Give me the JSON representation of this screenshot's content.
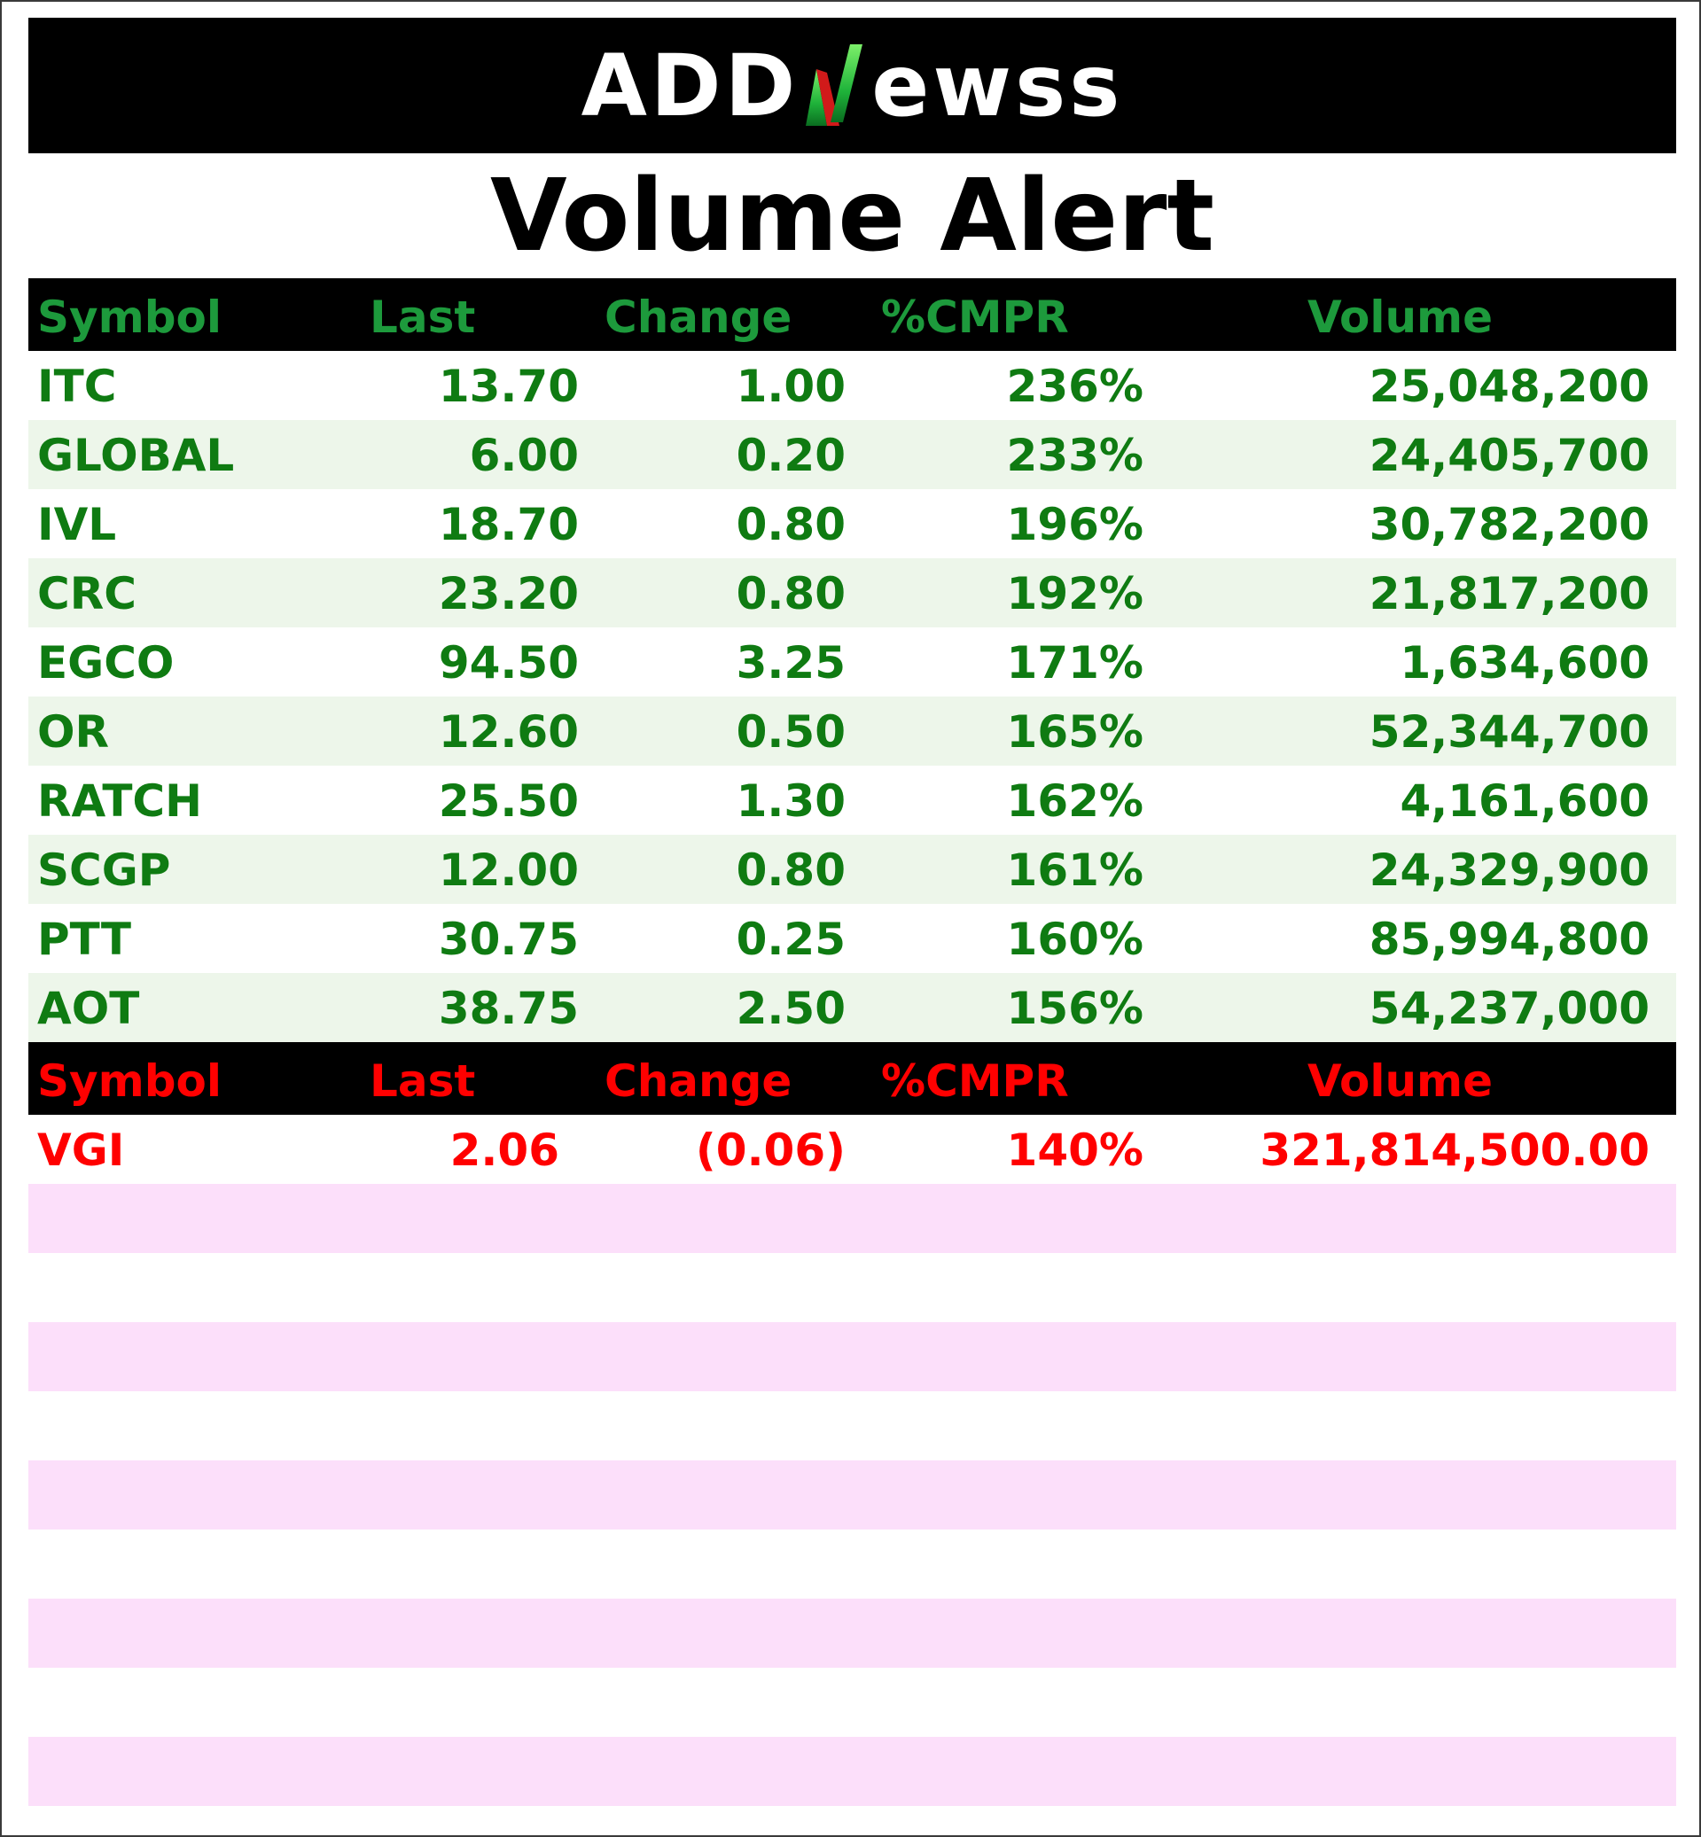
{
  "brand": {
    "logo_text_left": "ADD",
    "logo_text_right": "ewss",
    "logo_alt": "ADDNewss"
  },
  "title": "Volume Alert",
  "gainers": {
    "headers": {
      "symbol": "Symbol",
      "last": "Last",
      "change": "Change",
      "cmpr": "%CMPR",
      "volume": "Volume"
    },
    "rows": [
      {
        "symbol": "ITC",
        "last": "13.70",
        "change": "1.00",
        "cmpr": "236%",
        "volume": "25,048,200"
      },
      {
        "symbol": "GLOBAL",
        "last": "6.00",
        "change": "0.20",
        "cmpr": "233%",
        "volume": "24,405,700"
      },
      {
        "symbol": "IVL",
        "last": "18.70",
        "change": "0.80",
        "cmpr": "196%",
        "volume": "30,782,200"
      },
      {
        "symbol": "CRC",
        "last": "23.20",
        "change": "0.80",
        "cmpr": "192%",
        "volume": "21,817,200"
      },
      {
        "symbol": "EGCO",
        "last": "94.50",
        "change": "3.25",
        "cmpr": "171%",
        "volume": "1,634,600"
      },
      {
        "symbol": "OR",
        "last": "12.60",
        "change": "0.50",
        "cmpr": "165%",
        "volume": "52,344,700"
      },
      {
        "symbol": "RATCH",
        "last": "25.50",
        "change": "1.30",
        "cmpr": "162%",
        "volume": "4,161,600"
      },
      {
        "symbol": "SCGP",
        "last": "12.00",
        "change": "0.80",
        "cmpr": "161%",
        "volume": "24,329,900"
      },
      {
        "symbol": "PTT",
        "last": "30.75",
        "change": "0.25",
        "cmpr": "160%",
        "volume": "85,994,800"
      },
      {
        "symbol": "AOT",
        "last": "38.75",
        "change": "2.50",
        "cmpr": "156%",
        "volume": "54,237,000"
      }
    ]
  },
  "losers": {
    "headers": {
      "symbol": "Symbol",
      "last": "Last",
      "change": "Change",
      "cmpr": "%CMPR",
      "volume": "Volume"
    },
    "rows": [
      {
        "symbol": "VGI",
        "last": "2.06",
        "change": "(0.06)",
        "cmpr": "140%",
        "volume": "321,814,500.00"
      }
    ]
  },
  "colors": {
    "header_bg": "#000000",
    "gain_header": "#1d9a3c",
    "gain_text": "#0f7b12",
    "gain_alt_row": "#edf6ea",
    "loss_text": "#ff0000",
    "empty_row_pink": "#fcdffa",
    "logo_n_green": "#1fb33a",
    "logo_n_red": "#d11a1a"
  }
}
